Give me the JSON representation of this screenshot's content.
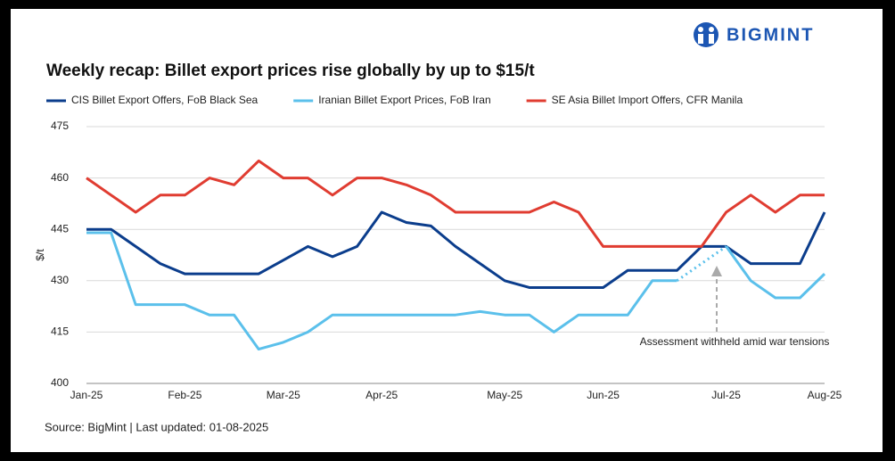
{
  "logo": "BIGMINT",
  "chart_data": {
    "type": "line",
    "title": "Weekly recap: Billet export prices rise globally by up to $15/t",
    "y_label": "$/t",
    "source": "Source: BigMint | Last updated: 01-08-2025",
    "annotation": "Assessment withheld amid war tensions",
    "categories": [
      "Jan-25",
      null,
      null,
      null,
      "Feb-25",
      null,
      null,
      null,
      "Mar-25",
      null,
      null,
      null,
      "Apr-25",
      null,
      null,
      null,
      null,
      "May-25",
      null,
      null,
      null,
      "Jun-25",
      null,
      null,
      null,
      null,
      "Jul-25",
      null,
      null,
      null,
      "Aug-25"
    ],
    "ylim": [
      400,
      475
    ],
    "yticks": [
      400,
      415,
      430,
      445,
      460,
      475
    ],
    "grid": true,
    "legend": "top",
    "series": [
      {
        "name": "CIS Billet Export Offers, FoB Black Sea",
        "color": "#0b3d8c",
        "values": [
          445,
          445,
          440,
          435,
          432,
          432,
          432,
          432,
          436,
          440,
          437,
          440,
          450,
          447,
          446,
          440,
          435,
          430,
          428,
          428,
          428,
          428,
          433,
          433,
          433,
          440,
          440,
          435,
          435,
          435,
          450
        ]
      },
      {
        "name": "Iranian Billet Export Prices, FoB Iran",
        "color": "#5bc0eb",
        "values": [
          444,
          444,
          423,
          423,
          423,
          420,
          420,
          410,
          412,
          415,
          420,
          420,
          420,
          420,
          420,
          420,
          421,
          420,
          420,
          415,
          420,
          420,
          420,
          430,
          430,
          null,
          440,
          430,
          425,
          425,
          432
        ]
      },
      {
        "name": "SE Asia Billet Import Offers, CFR Manila",
        "color": "#e03c31",
        "values": [
          460,
          455,
          450,
          455,
          455,
          460,
          458,
          465,
          460,
          460,
          455,
          460,
          460,
          458,
          455,
          450,
          450,
          450,
          450,
          453,
          450,
          440,
          440,
          440,
          440,
          440,
          450,
          455,
          450,
          455,
          455
        ]
      }
    ]
  }
}
